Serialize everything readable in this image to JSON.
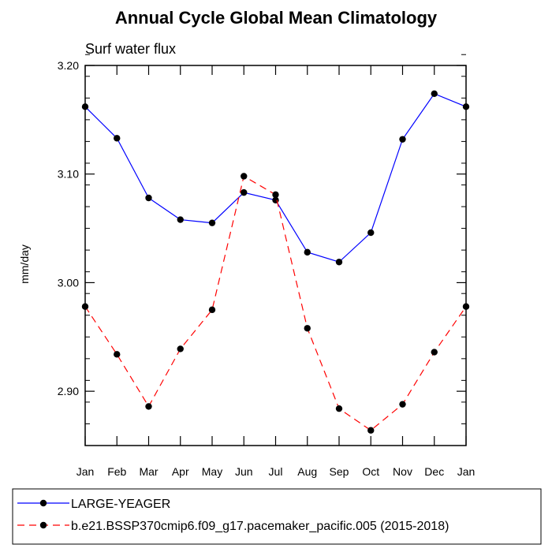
{
  "chart_data": {
    "type": "line",
    "title": "Annual Cycle Global Mean Climatology",
    "subtitle": "Surf water flux",
    "xlabel": "",
    "ylabel": "mm/day",
    "categories": [
      "Jan",
      "Feb",
      "Mar",
      "Apr",
      "May",
      "Jun",
      "Jul",
      "Aug",
      "Sep",
      "Oct",
      "Nov",
      "Dec",
      "Jan"
    ],
    "ylim": [
      2.85,
      3.2
    ],
    "yticks": [
      2.9,
      3.0,
      3.1,
      3.2
    ],
    "ytick_labels": [
      "2.90",
      "3.00",
      "3.10",
      "3.20"
    ],
    "yminor_step": 0.02,
    "grid": false,
    "legend_position": "bottom",
    "series": [
      {
        "name": "LARGE-YEAGER",
        "color": "#0000ff",
        "dash": "solid",
        "marker": "circle",
        "values": [
          3.162,
          3.133,
          3.078,
          3.058,
          3.055,
          3.083,
          3.076,
          3.028,
          3.019,
          3.046,
          3.132,
          3.174,
          3.162
        ]
      },
      {
        "name": "b.e21.BSSP370cmip6.f09_g17.pacemaker_pacific.005 (2015-2018)",
        "color": "#ff0000",
        "dash": "dashed",
        "marker": "circle",
        "values": [
          2.978,
          2.934,
          2.886,
          2.939,
          2.975,
          3.098,
          3.081,
          2.958,
          2.884,
          2.864,
          2.888,
          2.936,
          2.978
        ]
      }
    ]
  }
}
